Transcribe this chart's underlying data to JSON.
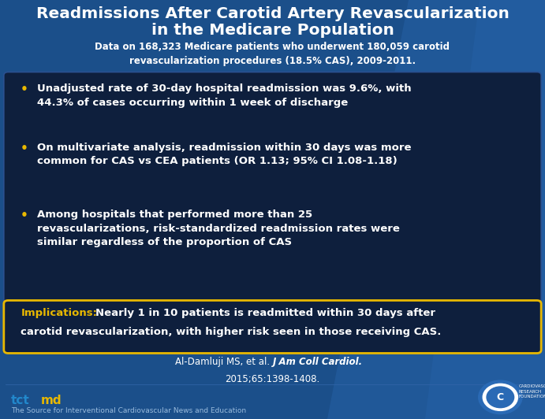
{
  "title_line1": "Readmissions After Carotid Artery Revascularization",
  "title_line2": "in the Medicare Population",
  "subtitle": "Data on 168,323 Medicare patients who underwent 180,059 carotid\nrevascularization procedures (18.5% CAS), 2009-2011.",
  "bullets": [
    "Unadjusted rate of 30-day hospital readmission was 9.6%, with\n44.3% of cases occurring within 1 week of discharge",
    "On multivariate analysis, readmission within 30 days was more\ncommon for CAS vs CEA patients (OR 1.13; 95% CI 1.08-1.18)",
    "Among hospitals that performed more than 25\nrevascularizations, risk-standardized readmission rates were\nsimilar regardless of the proportion of CAS"
  ],
  "implications_label": "Implications:",
  "implications_rest": " Nearly 1 in 10 patients is readmitted within 30 days after\ncarotid revascularization, with higher risk seen in those receiving CAS.",
  "citation_normal": "Al-Damluji MS, et al. ",
  "citation_italic": "J Am Coll Cardiol.",
  "citation_line2": "2015;65:1398-1408.",
  "footer_text": "The Source for Interventional Cardiovascular News and Education",
  "bg_color": "#1b4f8a",
  "bg_gradient_color": "#2a6ab5",
  "title_color": "#ffffff",
  "subtitle_color": "#ffffff",
  "bullet_box_color": "#0e1f3d",
  "bullet_box_edge": "#2a5090",
  "bullet_text_color": "#ffffff",
  "bullet_dot_color": "#e8b800",
  "implications_box_color": "#0e1f3d",
  "implications_box_edge": "#e8b800",
  "implications_label_color": "#e8b800",
  "implications_text_color": "#ffffff",
  "citation_color": "#ffffff",
  "footer_color": "#99bbdd",
  "tct_color_tct": "#2288cc",
  "tct_color_md": "#e8b800",
  "logo_circle_color": "#2a6ab5",
  "logo_text_color": "#ffffff"
}
